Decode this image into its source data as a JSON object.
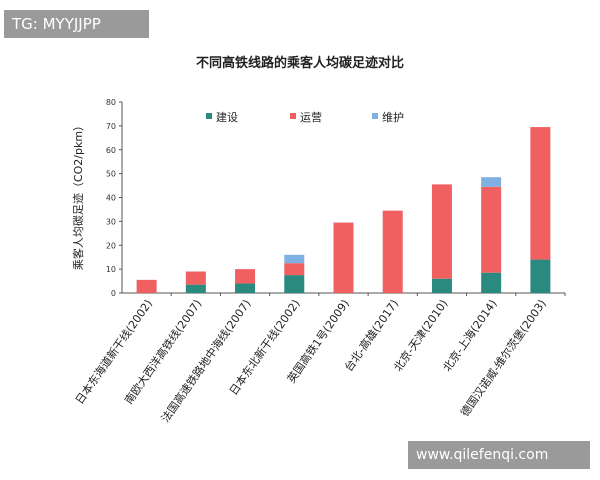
{
  "watermarks": {
    "top_left": "TG: MYYJJPP",
    "bottom_right": "www.qilefenqi.com",
    "bg_color": "#9a9a9a"
  },
  "chart_data": {
    "type": "bar",
    "stacked": true,
    "title": "不同高铁线路的乘客人均碳足迹对比",
    "ylabel": "乘客人均碳足迹（CO2/pkm）",
    "xlabel": "",
    "ylim": [
      0,
      80
    ],
    "yticks": [
      0,
      10,
      20,
      30,
      40,
      50,
      60,
      70,
      80
    ],
    "grid": false,
    "legend_position": "top",
    "categories": [
      "日本东海道新干线(2002)",
      "南欧大西洋高铁线(2007)",
      "法国高速铁路地中海线(2007)",
      "日本东北新干线(2002)",
      "英国高铁1号(2009)",
      "台北-高雄(2017)",
      "北京-天津(2010)",
      "北京-上海(2014)",
      "德国汉诺威-维尔茨堡(2003)"
    ],
    "series": [
      {
        "name": "建设",
        "color": "#2a8a80",
        "values": [
          0,
          3.5,
          4,
          7.5,
          0,
          0,
          6,
          8.5,
          14
        ]
      },
      {
        "name": "运营",
        "color": "#f06060",
        "values": [
          5.5,
          5.5,
          6,
          5,
          29.5,
          34.5,
          39.5,
          36,
          55.5
        ]
      },
      {
        "name": "维护",
        "color": "#7fb0e2",
        "values": [
          0,
          0,
          0,
          3.5,
          0,
          0,
          0,
          4,
          0
        ]
      }
    ]
  }
}
